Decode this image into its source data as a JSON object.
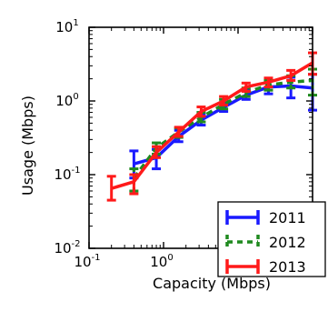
{
  "chart_data": {
    "type": "line",
    "title": "",
    "xlabel": "Capacity (Mbps)",
    "ylabel": "Usage (Mbps)",
    "xscale": "log",
    "yscale": "log",
    "xlim": [
      0.1,
      100
    ],
    "ylim": [
      0.01,
      10
    ],
    "xticks": [
      {
        "value": 0.1,
        "base": "10",
        "exp": "-1"
      },
      {
        "value": 1,
        "base": "10",
        "exp": "0"
      },
      {
        "value": 10,
        "base": "10",
        "exp": "1"
      },
      {
        "value": 100,
        "base": "10",
        "exp": "2"
      }
    ],
    "yticks": [
      {
        "value": 0.01,
        "base": "10",
        "exp": "-2"
      },
      {
        "value": 0.1,
        "base": "10",
        "exp": "-1"
      },
      {
        "value": 1,
        "base": "10",
        "exp": "0"
      },
      {
        "value": 10,
        "base": "10",
        "exp": "1"
      }
    ],
    "legend_position": "bottom-right",
    "grid": false,
    "series": [
      {
        "name": "2011",
        "color": "#1a1aff",
        "linestyle": "solid",
        "points": [
          {
            "x": 0.4,
            "y": 0.14,
            "ylo": 0.09,
            "yhi": 0.21
          },
          {
            "x": 0.8,
            "y": 0.17,
            "ylo": 0.12,
            "yhi": 0.22
          },
          {
            "x": 1.6,
            "y": 0.33,
            "ylo": 0.28,
            "yhi": 0.4
          },
          {
            "x": 3.2,
            "y": 0.55,
            "ylo": 0.47,
            "yhi": 0.65
          },
          {
            "x": 6.4,
            "y": 0.82,
            "ylo": 0.72,
            "yhi": 0.95
          },
          {
            "x": 12.8,
            "y": 1.2,
            "ylo": 1.05,
            "yhi": 1.4
          },
          {
            "x": 25.6,
            "y": 1.55,
            "ylo": 1.25,
            "yhi": 1.9
          },
          {
            "x": 51.2,
            "y": 1.6,
            "ylo": 1.1,
            "yhi": 2.1
          },
          {
            "x": 100,
            "y": 1.5,
            "ylo": 0.75,
            "yhi": 2.3
          }
        ]
      },
      {
        "name": "2012",
        "color": "#1f8a1f",
        "linestyle": "dashed",
        "points": [
          {
            "x": 0.4,
            "y": 0.09,
            "ylo": 0.06,
            "yhi": 0.12
          },
          {
            "x": 0.8,
            "y": 0.23,
            "ylo": 0.19,
            "yhi": 0.27
          },
          {
            "x": 1.6,
            "y": 0.38,
            "ylo": 0.32,
            "yhi": 0.43
          },
          {
            "x": 3.2,
            "y": 0.6,
            "ylo": 0.52,
            "yhi": 0.7
          },
          {
            "x": 6.4,
            "y": 0.9,
            "ylo": 0.78,
            "yhi": 1.05
          },
          {
            "x": 12.8,
            "y": 1.3,
            "ylo": 1.15,
            "yhi": 1.5
          },
          {
            "x": 25.6,
            "y": 1.65,
            "ylo": 1.4,
            "yhi": 1.9
          },
          {
            "x": 51.2,
            "y": 1.8,
            "ylo": 1.5,
            "yhi": 2.2
          },
          {
            "x": 100,
            "y": 1.9,
            "ylo": 1.2,
            "yhi": 2.7
          }
        ]
      },
      {
        "name": "2013",
        "color": "#ff1a1a",
        "linestyle": "solid",
        "points": [
          {
            "x": 0.2,
            "y": 0.065,
            "ylo": 0.045,
            "yhi": 0.095
          },
          {
            "x": 0.4,
            "y": 0.08,
            "ylo": 0.055,
            "yhi": 0.1
          },
          {
            "x": 0.8,
            "y": 0.2,
            "ylo": 0.17,
            "yhi": 0.24
          },
          {
            "x": 1.6,
            "y": 0.38,
            "ylo": 0.33,
            "yhi": 0.44
          },
          {
            "x": 3.2,
            "y": 0.72,
            "ylo": 0.62,
            "yhi": 0.83
          },
          {
            "x": 6.4,
            "y": 1.0,
            "ylo": 0.88,
            "yhi": 1.15
          },
          {
            "x": 12.8,
            "y": 1.55,
            "ylo": 1.35,
            "yhi": 1.75
          },
          {
            "x": 25.6,
            "y": 1.8,
            "ylo": 1.55,
            "yhi": 2.05
          },
          {
            "x": 51.2,
            "y": 2.2,
            "ylo": 1.9,
            "yhi": 2.6
          },
          {
            "x": 100,
            "y": 3.3,
            "ylo": 2.3,
            "yhi": 4.5
          }
        ]
      }
    ]
  }
}
